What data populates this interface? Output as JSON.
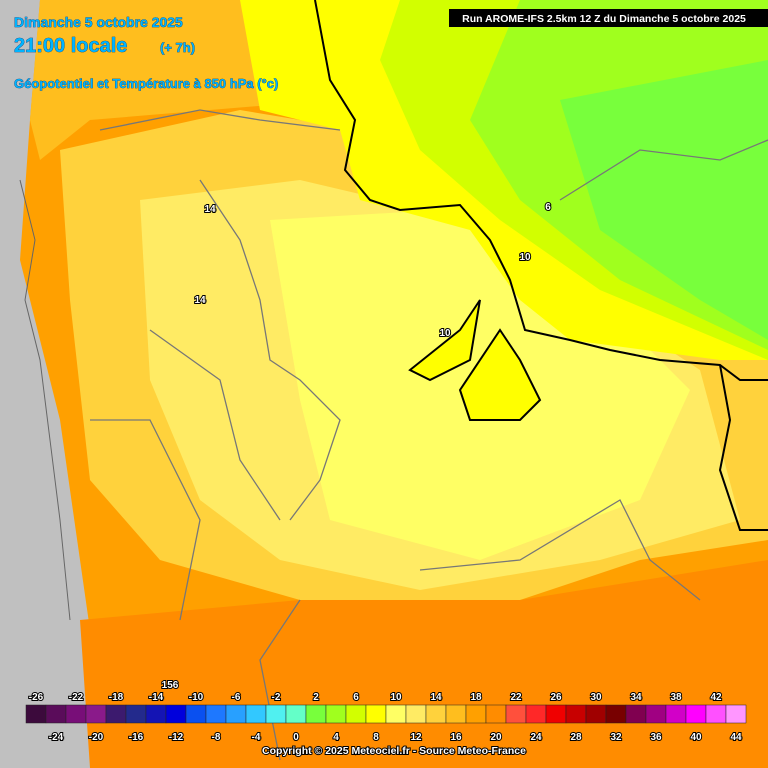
{
  "header": {
    "date": "Dimanche 5 octobre 2025",
    "time": "21:00 locale",
    "lead": "(+ 7h)",
    "field": "Géopotentiel et Température à 850 hPa (°c)",
    "run": "Run AROME-IFS 2.5km 12 Z du Dimanche 5 octobre 2025"
  },
  "map": {
    "contour_labels": [
      "14",
      "14",
      "10",
      "10",
      "6",
      "156"
    ]
  },
  "legend": {
    "ticks": [
      -26,
      -24,
      -22,
      -20,
      -18,
      -16,
      -14,
      -12,
      -10,
      -8,
      -6,
      -4,
      -2,
      0,
      2,
      4,
      6,
      8,
      10,
      12,
      14,
      16,
      18,
      20,
      22,
      24,
      26,
      28,
      30,
      32,
      34,
      36,
      38,
      40,
      42,
      44
    ],
    "colors": [
      "#3c0a3c",
      "#5a0c5a",
      "#780e78",
      "#8a1a8a",
      "#3c1a6e",
      "#232a8c",
      "#1414b4",
      "#0000dc",
      "#0a50f0",
      "#1e78ff",
      "#28a0ff",
      "#32c8ff",
      "#50f0f0",
      "#64ffc8",
      "#78ff3c",
      "#a0ff1e",
      "#d2ff00",
      "#ffff00",
      "#ffff64",
      "#ffeb64",
      "#ffd23c",
      "#ffbe1e",
      "#ffa000",
      "#ff8c00",
      "#ff503c",
      "#ff2828",
      "#f00000",
      "#c80000",
      "#a00000",
      "#780000",
      "#800050",
      "#a00082",
      "#d200c8",
      "#ff00ff",
      "#ff50ff",
      "#ff96ff"
    ]
  },
  "footer": {
    "copyright": "Copyright © 2025 Meteociel.fr - Source Meteo-France"
  }
}
